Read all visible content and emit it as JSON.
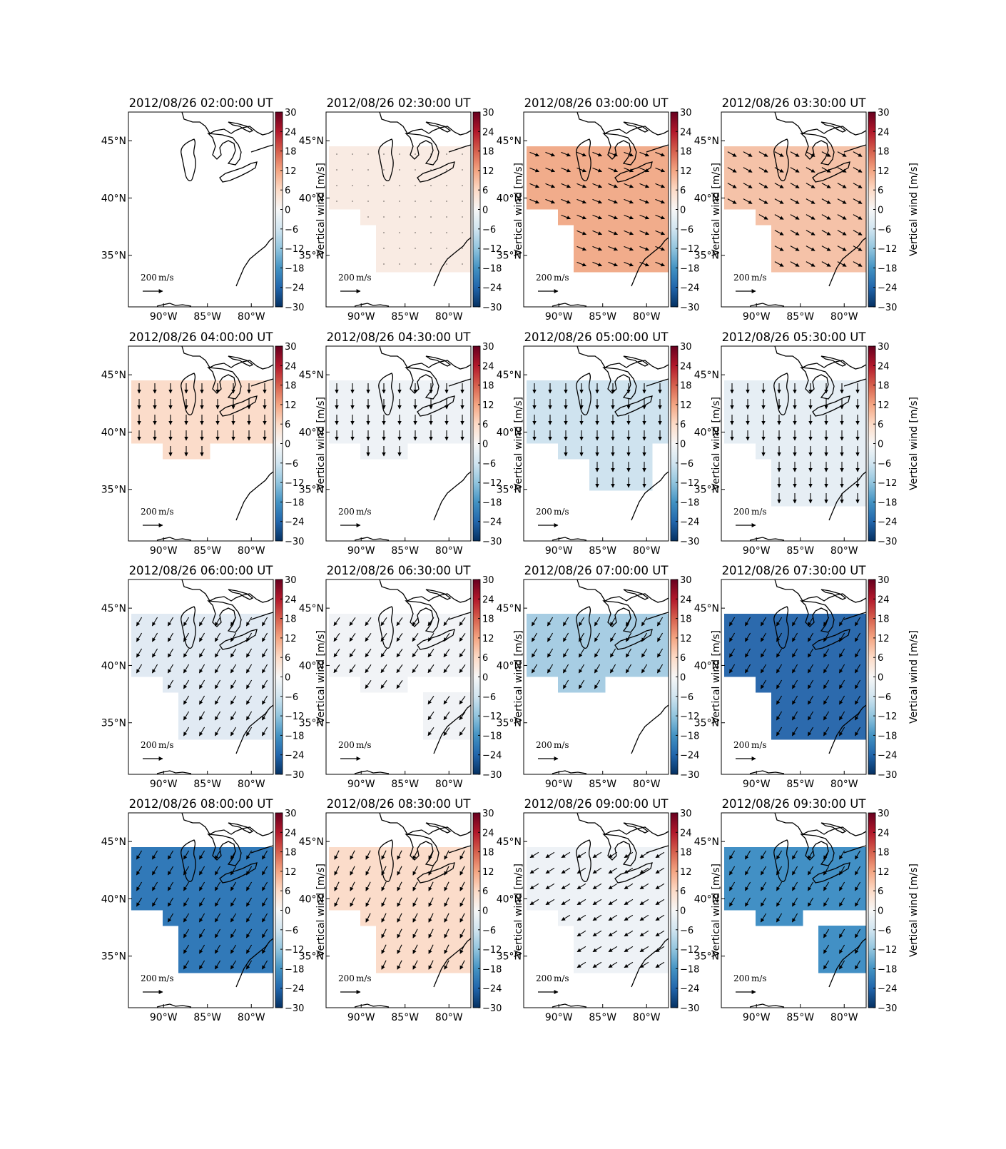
{
  "chart_data": {
    "type": "heatmap",
    "layout": "4x4 panel grid of maps",
    "colorbar": {
      "label": "Vertical wind [m/s]",
      "range": [
        -30,
        30
      ],
      "ticks": [
        "30",
        "24",
        "18",
        "12",
        "6",
        "0",
        "−6",
        "−12",
        "−18",
        "−24",
        "−30"
      ],
      "colormap": "red-white-blue (RdBu reversed)"
    },
    "map_axes": {
      "lon_ticks": [
        "90°W",
        "85°W",
        "80°W"
      ],
      "lat_ticks": [
        "45°N",
        "40°N",
        "35°N"
      ],
      "lon_range": [
        -94,
        -77.5
      ],
      "lat_range": [
        30.5,
        47.5
      ]
    },
    "scale_arrow_label": "200",
    "scale_arrow_unit": "m/s",
    "panels": [
      {
        "title": "2012/08/26 02:00:00 UT",
        "vertical_wind": null,
        "color": "#ffffff",
        "region": "none",
        "arrow": [
          0,
          0
        ]
      },
      {
        "title": "2012/08/26 02:30:00 UT",
        "vertical_wind": 3,
        "color": "#f9ebe3",
        "region": "north+south",
        "arrow": [
          0,
          0
        ]
      },
      {
        "title": "2012/08/26 03:00:00 UT",
        "vertical_wind": 12,
        "color": "#f1ac8b",
        "region": "north+south",
        "arrow": [
          1,
          -0.4
        ]
      },
      {
        "title": "2012/08/26 03:30:00 UT",
        "vertical_wind": 10,
        "color": "#f5c2a8",
        "region": "north+south",
        "arrow": [
          0.9,
          -0.5
        ]
      },
      {
        "title": "2012/08/26 04:00:00 UT",
        "vertical_wind": 6,
        "color": "#fbdcca",
        "region": "north",
        "arrow": [
          0,
          -1
        ]
      },
      {
        "title": "2012/08/26 04:30:00 UT",
        "vertical_wind": -3,
        "color": "#eef2f6",
        "region": "north",
        "arrow": [
          0,
          -1
        ]
      },
      {
        "title": "2012/08/26 05:00:00 UT",
        "vertical_wind": -8,
        "color": "#cfe3ef",
        "region": "north+east",
        "arrow": [
          0,
          -1
        ]
      },
      {
        "title": "2012/08/26 05:30:00 UT",
        "vertical_wind": -4,
        "color": "#e6eef4",
        "region": "north+south",
        "arrow": [
          0,
          -1
        ]
      },
      {
        "title": "2012/08/26 06:00:00 UT",
        "vertical_wind": -5,
        "color": "#e1eaf3",
        "region": "north+south",
        "arrow": [
          -0.6,
          -1
        ]
      },
      {
        "title": "2012/08/26 06:30:00 UT",
        "vertical_wind": -2,
        "color": "#f1f3f6",
        "region": "north+southeast",
        "arrow": [
          -0.7,
          -1
        ]
      },
      {
        "title": "2012/08/26 07:00:00 UT",
        "vertical_wind": -12,
        "color": "#a7cde3",
        "region": "north",
        "arrow": [
          -0.6,
          -1
        ]
      },
      {
        "title": "2012/08/26 07:30:00 UT",
        "vertical_wind": -24,
        "color": "#2c6aad",
        "region": "north+south",
        "arrow": [
          -0.6,
          -1
        ]
      },
      {
        "title": "2012/08/26 08:00:00 UT",
        "vertical_wind": -21,
        "color": "#3179b8",
        "region": "north+south",
        "arrow": [
          -0.6,
          -1
        ]
      },
      {
        "title": "2012/08/26 08:30:00 UT",
        "vertical_wind": 6,
        "color": "#fbdcca",
        "region": "north+south",
        "arrow": [
          -0.5,
          -1
        ]
      },
      {
        "title": "2012/08/26 09:00:00 UT",
        "vertical_wind": -3,
        "color": "#eef2f6",
        "region": "north+south",
        "arrow": [
          -0.8,
          -0.5
        ]
      },
      {
        "title": "2012/08/26 09:30:00 UT",
        "vertical_wind": -18,
        "color": "#4290c5",
        "region": "north+southeast",
        "arrow": [
          -0.6,
          -1
        ]
      }
    ]
  }
}
